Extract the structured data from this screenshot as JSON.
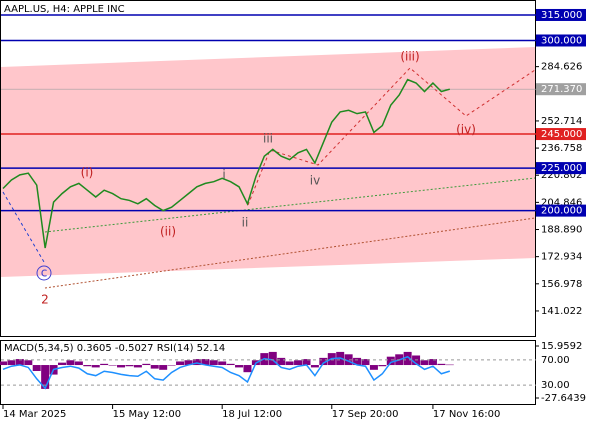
{
  "chart_data": [
    {
      "type": "line",
      "title": "AAPL.US, H4:  APPLE INC",
      "color": "#1f8a1f",
      "categories": [
        "14 Mar 2025",
        null,
        null,
        null,
        null,
        null,
        null,
        null,
        null,
        null,
        null,
        null,
        null,
        "15 May 12:00",
        null,
        null,
        null,
        null,
        null,
        null,
        null,
        null,
        null,
        null,
        null,
        null,
        "18 Jul 12:00",
        null,
        null,
        null,
        null,
        null,
        null,
        null,
        null,
        null,
        null,
        null,
        null,
        "17 Sep 20:00",
        null,
        null,
        null,
        null,
        null,
        null,
        null,
        null,
        null,
        null,
        null,
        "17 Nov 16:00",
        null,
        null
      ],
      "values": [
        213,
        218,
        221,
        222,
        215,
        178,
        205,
        210,
        214,
        216,
        212,
        208,
        212,
        210,
        207,
        206,
        204,
        207,
        203,
        200,
        202,
        206,
        210,
        214,
        216,
        217,
        219,
        217,
        214,
        204,
        220,
        232,
        236,
        232,
        230,
        234,
        236,
        228,
        240,
        252,
        258,
        259,
        257,
        258,
        246,
        250,
        262,
        268,
        277,
        275,
        270,
        275,
        270,
        271.37
      ],
      "ylim": [
        126.3,
        323.8
      ],
      "yticks": [
        {
          "value": 284.626,
          "label": "284.626"
        },
        {
          "value": 252.714,
          "label": "252.714"
        },
        {
          "value": 236.758,
          "label": "236.758"
        },
        {
          "value": 220.802,
          "label": "220.802"
        },
        {
          "value": 204.846,
          "label": "204.846"
        },
        {
          "value": 188.89,
          "label": "188.890"
        },
        {
          "value": 172.934,
          "label": "172.934"
        },
        {
          "value": 156.978,
          "label": "156.978"
        },
        {
          "value": 141.022,
          "label": "141.022"
        }
      ],
      "levels": [
        {
          "value": 315,
          "label": "315.000",
          "color": "#0000b0"
        },
        {
          "value": 300,
          "label": "300.000",
          "color": "#0000b0"
        },
        {
          "value": 271.37,
          "label": "271.370",
          "color": "#a0a0a0"
        },
        {
          "value": 245,
          "label": "245.000",
          "color": "#e02020"
        },
        {
          "value": 225,
          "label": "225.000",
          "color": "#0000b0"
        },
        {
          "value": 200,
          "label": "200.000",
          "color": "#0000b0"
        }
      ],
      "annotations": [
        "(i)",
        "(ii)",
        "i",
        "ii",
        "iii",
        "iv",
        "(iii)",
        "(iv)",
        "c",
        "2"
      ],
      "grid": false
    },
    {
      "type": "macd_rsi",
      "title": "MACD(5,34,5) 0.3605 -0.5027 RSI(14) 52.14",
      "macd": {
        "color": "#800080",
        "values": [
          3,
          4,
          5,
          4,
          -5,
          -20,
          -8,
          2,
          4,
          3,
          -1,
          -2,
          1,
          0,
          -2,
          -1,
          -2,
          1,
          -3,
          -4,
          0,
          3,
          4,
          5,
          5,
          4,
          3,
          1,
          -2,
          -6,
          4,
          10,
          11,
          6,
          3,
          4,
          5,
          -2,
          6,
          10,
          11,
          9,
          6,
          5,
          -4,
          -1,
          7,
          9,
          11,
          8,
          4,
          5,
          1,
          0.3605
        ]
      },
      "rsi": {
        "color": "#1e90ff",
        "values": [
          55,
          60,
          62,
          58,
          40,
          25,
          55,
          58,
          60,
          57,
          48,
          45,
          52,
          50,
          47,
          45,
          44,
          52,
          40,
          38,
          50,
          58,
          62,
          65,
          62,
          60,
          58,
          50,
          45,
          35,
          65,
          72,
          70,
          58,
          55,
          60,
          62,
          45,
          65,
          72,
          73,
          68,
          62,
          60,
          38,
          48,
          66,
          70,
          75,
          64,
          55,
          60,
          48,
          52.14
        ]
      },
      "ylim": [
        -27.6439,
        15.9592
      ],
      "yticks": [
        {
          "value": 15.9592,
          "label": "15.9592"
        },
        {
          "value": -27.6439,
          "label": "-27.6439"
        }
      ],
      "y2lim": [
        0,
        100
      ],
      "y2ticks": [
        {
          "value": 70,
          "label": "70.00"
        },
        {
          "value": 30,
          "label": "30.00"
        }
      ]
    }
  ]
}
